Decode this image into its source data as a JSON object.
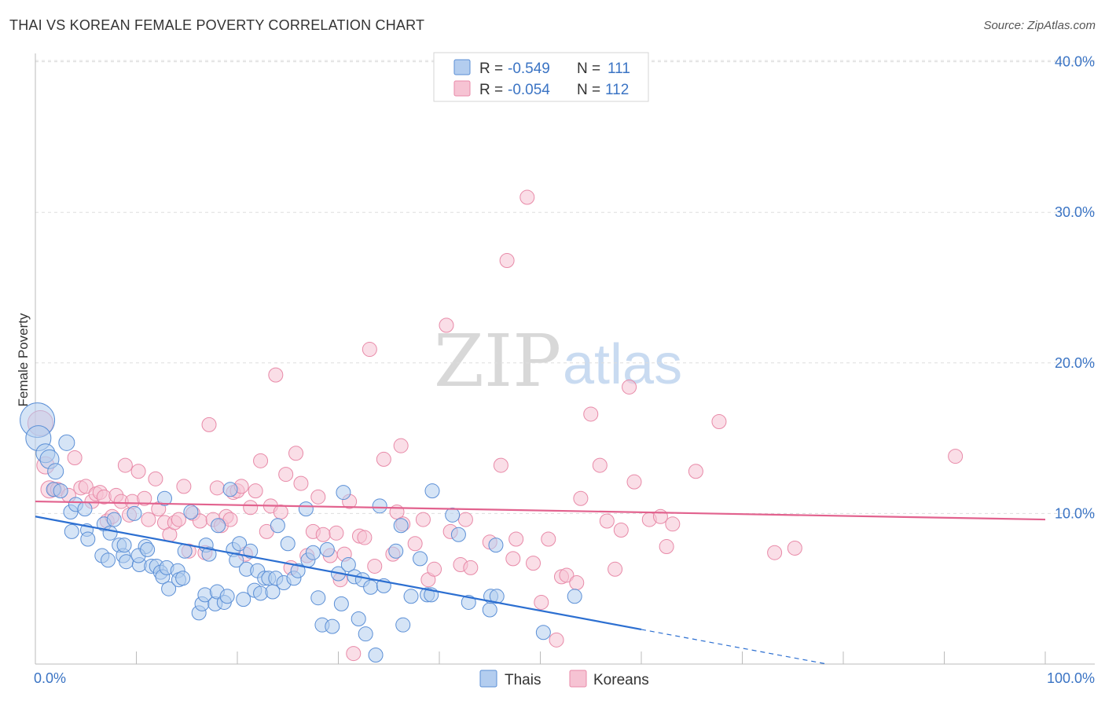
{
  "header": {
    "title": "THAI VS KOREAN FEMALE POVERTY CORRELATION CHART",
    "source": "Source: ZipAtlas.com"
  },
  "watermark": {
    "zip": "ZIP",
    "atlas": "atlas"
  },
  "legend_box": {
    "rows": [
      {
        "r_label": "R =",
        "r_value": "-0.549",
        "n_label": "N =",
        "n_value": "111"
      },
      {
        "r_label": "R =",
        "r_value": "-0.054",
        "n_label": "N =",
        "n_value": "112"
      }
    ]
  },
  "colors": {
    "thai_fill": "#b3cdef",
    "thai_stroke": "#5b8fd6",
    "thai_line": "#2c6fd1",
    "korean_fill": "#f6c3d3",
    "korean_stroke": "#e88aa8",
    "korean_line": "#e2628e",
    "tick_text": "#3b74c4",
    "grid": "#dddddd"
  },
  "chart_data": {
    "type": "scatter",
    "title": "THAI VS KOREAN FEMALE POVERTY CORRELATION CHART",
    "xlabel": "",
    "ylabel": "Female Poverty",
    "xlim": [
      0,
      100
    ],
    "ylim": [
      0,
      40.5
    ],
    "x_tick_labels": [
      "0.0%",
      "100.0%"
    ],
    "y_ticks": [
      {
        "value": 10,
        "label": "10.0%"
      },
      {
        "value": 20,
        "label": "20.0%"
      },
      {
        "value": 30,
        "label": "30.0%"
      },
      {
        "value": 40,
        "label": "40.0%"
      }
    ],
    "legend": [
      "Thais",
      "Koreans"
    ],
    "series": [
      {
        "name": "Thais",
        "r": -0.549,
        "n": 111,
        "trend": {
          "x0": 0,
          "y0": 9.8,
          "x1": 60,
          "y1": 2.3,
          "dash_to_x": 78.5
        },
        "points": [
          [
            0.2,
            16.2,
            22
          ],
          [
            0.3,
            15.0,
            16
          ],
          [
            1.0,
            14.0,
            12
          ],
          [
            1.4,
            13.6,
            12
          ],
          [
            3.1,
            14.7,
            10
          ],
          [
            2.0,
            12.8,
            10
          ],
          [
            1.8,
            11.6,
            9
          ],
          [
            2.5,
            11.5,
            9
          ],
          [
            3.5,
            10.1,
            9
          ],
          [
            4.0,
            10.6,
            9
          ],
          [
            4.9,
            10.3,
            9
          ],
          [
            3.6,
            8.8,
            9
          ],
          [
            5.1,
            8.9,
            8
          ],
          [
            5.2,
            8.3,
            9
          ],
          [
            6.8,
            9.3,
            9
          ],
          [
            7.4,
            8.7,
            9
          ],
          [
            7.8,
            9.6,
            9
          ],
          [
            6.6,
            7.2,
            9
          ],
          [
            7.2,
            6.9,
            9
          ],
          [
            8.3,
            7.9,
            9
          ],
          [
            8.7,
            7.2,
            9
          ],
          [
            9.0,
            6.8,
            9
          ],
          [
            8.8,
            7.9,
            9
          ],
          [
            9.8,
            10.0,
            9
          ],
          [
            10.3,
            6.6,
            9
          ],
          [
            10.9,
            7.8,
            9
          ],
          [
            10.2,
            7.2,
            9
          ],
          [
            11.1,
            7.6,
            9
          ],
          [
            11.5,
            6.5,
            9
          ],
          [
            12.0,
            6.5,
            9
          ],
          [
            12.4,
            6.1,
            9
          ],
          [
            12.6,
            5.8,
            9
          ],
          [
            13.0,
            6.4,
            9
          ],
          [
            12.8,
            11.0,
            9
          ],
          [
            13.2,
            5.0,
            9
          ],
          [
            14.1,
            6.2,
            9
          ],
          [
            14.2,
            5.6,
            9
          ],
          [
            14.6,
            5.7,
            9
          ],
          [
            14.8,
            7.5,
            9
          ],
          [
            15.4,
            10.1,
            9
          ],
          [
            16.2,
            3.4,
            9
          ],
          [
            16.5,
            4.0,
            9
          ],
          [
            16.8,
            4.6,
            9
          ],
          [
            16.9,
            7.9,
            9
          ],
          [
            17.2,
            7.3,
            9
          ],
          [
            17.8,
            4.0,
            9
          ],
          [
            18.0,
            4.8,
            9
          ],
          [
            18.1,
            9.2,
            9
          ],
          [
            18.7,
            4.1,
            9
          ],
          [
            19.0,
            4.5,
            9
          ],
          [
            19.3,
            11.6,
            9
          ],
          [
            19.6,
            7.6,
            9
          ],
          [
            19.9,
            6.9,
            9
          ],
          [
            20.2,
            8.0,
            9
          ],
          [
            20.6,
            4.3,
            9
          ],
          [
            20.9,
            6.3,
            9
          ],
          [
            21.3,
            7.5,
            9
          ],
          [
            21.7,
            4.9,
            9
          ],
          [
            22.0,
            6.2,
            9
          ],
          [
            22.3,
            4.7,
            9
          ],
          [
            22.7,
            5.7,
            9
          ],
          [
            23.1,
            5.7,
            9
          ],
          [
            23.5,
            4.8,
            9
          ],
          [
            23.8,
            5.7,
            9
          ],
          [
            24.0,
            9.2,
            9
          ],
          [
            24.6,
            5.4,
            9
          ],
          [
            25.0,
            8.0,
            9
          ],
          [
            25.6,
            5.7,
            9
          ],
          [
            26.0,
            6.2,
            9
          ],
          [
            26.8,
            10.3,
            9
          ],
          [
            27.0,
            6.9,
            9
          ],
          [
            27.5,
            7.4,
            9
          ],
          [
            28.0,
            4.4,
            9
          ],
          [
            28.4,
            2.6,
            9
          ],
          [
            28.9,
            7.6,
            9
          ],
          [
            29.4,
            2.5,
            9
          ],
          [
            30.0,
            6.0,
            9
          ],
          [
            30.3,
            4.0,
            9
          ],
          [
            30.5,
            11.4,
            9
          ],
          [
            31.0,
            6.6,
            9
          ],
          [
            31.6,
            5.8,
            9
          ],
          [
            32.0,
            3.0,
            9
          ],
          [
            32.4,
            5.6,
            9
          ],
          [
            32.7,
            2.0,
            9
          ],
          [
            33.2,
            5.1,
            9
          ],
          [
            33.7,
            0.6,
            9
          ],
          [
            34.1,
            10.5,
            9
          ],
          [
            34.5,
            5.2,
            9
          ],
          [
            35.7,
            7.5,
            9
          ],
          [
            36.2,
            9.2,
            9
          ],
          [
            36.4,
            2.6,
            9
          ],
          [
            37.2,
            4.5,
            9
          ],
          [
            38.1,
            7.0,
            9
          ],
          [
            38.8,
            4.6,
            9
          ],
          [
            39.2,
            4.6,
            9
          ],
          [
            39.3,
            11.5,
            9
          ],
          [
            41.3,
            9.9,
            9
          ],
          [
            41.9,
            8.6,
            9
          ],
          [
            42.9,
            4.1,
            9
          ],
          [
            45.0,
            3.6,
            9
          ],
          [
            45.6,
            7.9,
            9
          ],
          [
            45.1,
            4.5,
            9
          ],
          [
            45.7,
            4.5,
            9
          ],
          [
            50.3,
            2.1,
            9
          ],
          [
            53.4,
            4.5,
            9
          ]
        ]
      },
      {
        "name": "Koreans",
        "r": -0.054,
        "n": 112,
        "trend": {
          "x0": 0,
          "y0": 10.8,
          "x1": 100,
          "y1": 9.6
        },
        "points": [
          [
            0.5,
            16.0,
            16
          ],
          [
            1.0,
            13.2,
            11
          ],
          [
            1.4,
            11.6,
            11
          ],
          [
            1.9,
            11.6,
            9
          ],
          [
            2.2,
            11.6,
            9
          ],
          [
            3.3,
            11.2,
            9
          ],
          [
            3.9,
            13.7,
            9
          ],
          [
            4.5,
            11.7,
            9
          ],
          [
            5.0,
            11.8,
            9
          ],
          [
            5.6,
            10.8,
            9
          ],
          [
            6.0,
            11.3,
            9
          ],
          [
            6.4,
            11.4,
            9
          ],
          [
            6.8,
            11.1,
            9
          ],
          [
            7.1,
            9.5,
            9
          ],
          [
            7.6,
            9.8,
            9
          ],
          [
            8.0,
            11.2,
            9
          ],
          [
            8.5,
            10.8,
            9
          ],
          [
            8.9,
            13.2,
            9
          ],
          [
            9.3,
            9.9,
            9
          ],
          [
            9.6,
            10.8,
            9
          ],
          [
            10.2,
            12.8,
            9
          ],
          [
            10.8,
            11.0,
            9
          ],
          [
            11.2,
            9.6,
            9
          ],
          [
            11.9,
            12.3,
            9
          ],
          [
            12.2,
            10.3,
            9
          ],
          [
            12.8,
            9.4,
            9
          ],
          [
            13.3,
            8.6,
            9
          ],
          [
            13.8,
            9.4,
            9
          ],
          [
            14.2,
            9.6,
            9
          ],
          [
            14.7,
            11.8,
            9
          ],
          [
            15.2,
            7.5,
            9
          ],
          [
            15.6,
            10.0,
            9
          ],
          [
            16.3,
            9.5,
            9
          ],
          [
            16.8,
            7.4,
            9
          ],
          [
            17.2,
            15.9,
            9
          ],
          [
            17.6,
            9.6,
            9
          ],
          [
            18.0,
            11.7,
            9
          ],
          [
            18.4,
            9.2,
            9
          ],
          [
            18.9,
            9.8,
            9
          ],
          [
            19.3,
            9.6,
            9
          ],
          [
            19.6,
            11.4,
            9
          ],
          [
            20.0,
            11.5,
            9
          ],
          [
            20.4,
            11.8,
            9
          ],
          [
            20.8,
            7.3,
            9
          ],
          [
            21.3,
            10.4,
            9
          ],
          [
            21.8,
            11.5,
            9
          ],
          [
            22.3,
            13.5,
            9
          ],
          [
            22.9,
            8.8,
            9
          ],
          [
            23.3,
            10.5,
            9
          ],
          [
            23.8,
            19.2,
            9
          ],
          [
            24.3,
            10.1,
            9
          ],
          [
            24.8,
            12.6,
            9
          ],
          [
            25.3,
            6.4,
            9
          ],
          [
            25.8,
            14.0,
            9
          ],
          [
            26.3,
            12.0,
            9
          ],
          [
            26.9,
            7.2,
            9
          ],
          [
            27.5,
            8.8,
            9
          ],
          [
            28.0,
            11.1,
            9
          ],
          [
            28.5,
            8.6,
            9
          ],
          [
            29.2,
            7.2,
            9
          ],
          [
            29.8,
            8.7,
            9
          ],
          [
            30.2,
            5.6,
            9
          ],
          [
            30.6,
            7.3,
            9
          ],
          [
            31.1,
            10.8,
            9
          ],
          [
            31.5,
            0.7,
            9
          ],
          [
            32.1,
            8.5,
            9
          ],
          [
            32.6,
            8.4,
            9
          ],
          [
            33.1,
            20.9,
            9
          ],
          [
            33.6,
            6.5,
            9
          ],
          [
            34.5,
            13.6,
            9
          ],
          [
            35.4,
            7.3,
            9
          ],
          [
            35.8,
            10.1,
            9
          ],
          [
            36.4,
            9.3,
            9
          ],
          [
            36.2,
            14.5,
            9
          ],
          [
            37.6,
            8.0,
            9
          ],
          [
            38.4,
            9.6,
            9
          ],
          [
            38.9,
            5.6,
            9
          ],
          [
            39.5,
            6.3,
            9
          ],
          [
            40.7,
            22.5,
            9
          ],
          [
            41.1,
            8.8,
            9
          ],
          [
            42.1,
            6.6,
            9
          ],
          [
            42.6,
            9.6,
            9
          ],
          [
            43.1,
            6.4,
            9
          ],
          [
            45.0,
            8.1,
            9
          ],
          [
            46.1,
            13.2,
            9
          ],
          [
            46.7,
            26.8,
            9
          ],
          [
            47.3,
            7.0,
            9
          ],
          [
            47.6,
            8.3,
            9
          ],
          [
            48.7,
            31.0,
            9
          ],
          [
            49.3,
            6.7,
            9
          ],
          [
            50.1,
            4.1,
            9
          ],
          [
            50.8,
            8.3,
            9
          ],
          [
            51.6,
            1.6,
            9
          ],
          [
            52.1,
            5.8,
            9
          ],
          [
            52.6,
            5.9,
            9
          ],
          [
            53.6,
            5.4,
            9
          ],
          [
            54.0,
            11.0,
            9
          ],
          [
            55.0,
            16.6,
            9
          ],
          [
            55.9,
            13.2,
            9
          ],
          [
            56.6,
            9.5,
            9
          ],
          [
            57.4,
            6.3,
            9
          ],
          [
            58.0,
            8.9,
            9
          ],
          [
            58.8,
            18.4,
            9
          ],
          [
            59.3,
            12.1,
            9
          ],
          [
            60.8,
            9.6,
            9
          ],
          [
            61.9,
            9.8,
            9
          ],
          [
            62.5,
            7.8,
            9
          ],
          [
            63.1,
            9.3,
            9
          ],
          [
            65.4,
            12.8,
            9
          ],
          [
            67.7,
            16.1,
            9
          ],
          [
            73.2,
            7.4,
            9
          ],
          [
            75.2,
            7.7,
            9
          ],
          [
            91.1,
            13.8,
            9
          ]
        ]
      }
    ]
  }
}
